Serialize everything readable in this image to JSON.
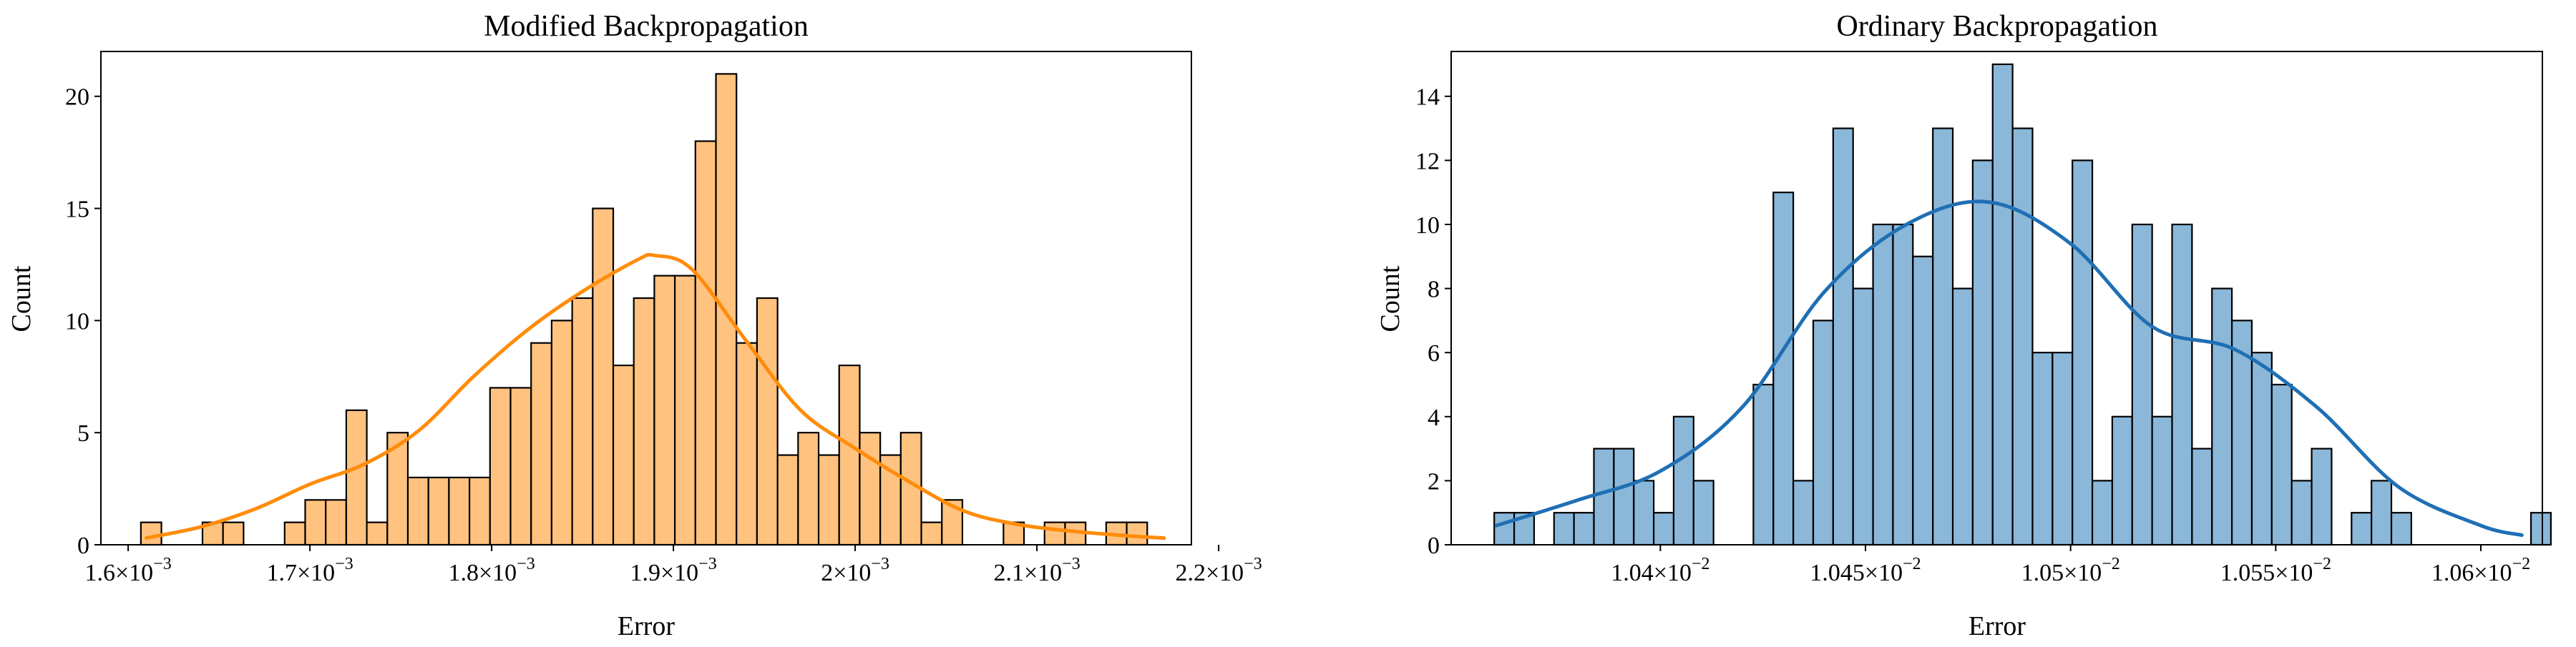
{
  "chart_data": [
    {
      "type": "bar",
      "title": "Modified Backpropagation",
      "xlabel": "Error",
      "ylabel": "Count",
      "xlim": [
        0.001585,
        0.002185
      ],
      "ylim": [
        0,
        22
      ],
      "xticks": [
        {
          "value": 0.0016,
          "mantissa": "1.6",
          "exp": "−3"
        },
        {
          "value": 0.0017,
          "mantissa": "1.7",
          "exp": "−3"
        },
        {
          "value": 0.0018,
          "mantissa": "1.8",
          "exp": "−3"
        },
        {
          "value": 0.0019,
          "mantissa": "1.9",
          "exp": "−3"
        },
        {
          "value": 0.002,
          "mantissa": "2",
          "exp": "−3"
        },
        {
          "value": 0.0021,
          "mantissa": "2.1",
          "exp": "−3"
        },
        {
          "value": 0.0022,
          "mantissa": "2.2",
          "exp": "−3"
        }
      ],
      "yticks": [
        0,
        5,
        10,
        15,
        20
      ],
      "bin_start": 0.001607,
      "bin_width": 1.13e-05,
      "counts": [
        1,
        0,
        0,
        1,
        1,
        0,
        0,
        1,
        2,
        2,
        6,
        1,
        5,
        3,
        3,
        3,
        3,
        7,
        7,
        9,
        10,
        11,
        15,
        8,
        11,
        12,
        12,
        18,
        21,
        9,
        11,
        4,
        5,
        4,
        8,
        5,
        4,
        5,
        1,
        2,
        0,
        0,
        1,
        0,
        1,
        1,
        0,
        1,
        1
      ],
      "kde": {
        "x": [
          0.00161,
          0.00164,
          0.00167,
          0.0017,
          0.00173,
          0.00176,
          0.00179,
          0.00182,
          0.00185,
          0.00188,
          0.00189,
          0.00191,
          0.00194,
          0.00197,
          0.002,
          0.00203,
          0.00206,
          0.00209,
          0.00212,
          0.00215,
          0.00217
        ],
        "y": [
          0.3,
          0.8,
          1.6,
          2.7,
          3.6,
          5.1,
          7.5,
          9.6,
          11.3,
          12.7,
          12.9,
          12.3,
          9.1,
          6.0,
          4.3,
          2.8,
          1.5,
          0.9,
          0.6,
          0.4,
          0.3
        ]
      },
      "colors": {
        "bar_fill": "#ffc27f",
        "bar_edge": "#000000",
        "kde_line": "#ff8c0a"
      }
    },
    {
      "type": "bar",
      "title": "Ordinary Backpropagation",
      "xlabel": "Error",
      "ylabel": "Count",
      "xlim": [
        0.010349,
        0.010615
      ],
      "ylim": [
        0,
        15.4
      ],
      "xticks": [
        {
          "value": 0.0104,
          "mantissa": "1.04",
          "exp": "−2"
        },
        {
          "value": 0.01045,
          "mantissa": "1.045",
          "exp": "−2"
        },
        {
          "value": 0.0105,
          "mantissa": "1.05",
          "exp": "−2"
        },
        {
          "value": 0.01055,
          "mantissa": "1.055",
          "exp": "−2"
        },
        {
          "value": 0.0106,
          "mantissa": "1.06",
          "exp": "−2"
        }
      ],
      "yticks": [
        0,
        2,
        4,
        6,
        8,
        10,
        12,
        14
      ],
      "bin_start": 0.0103595,
      "bin_width": 4.86e-06,
      "counts": [
        1,
        1,
        0,
        1,
        1,
        3,
        3,
        2,
        1,
        4,
        2,
        0,
        0,
        5,
        11,
        2,
        7,
        13,
        8,
        10,
        10,
        9,
        13,
        8,
        12,
        15,
        13,
        6,
        6,
        12,
        2,
        4,
        10,
        4,
        10,
        3,
        8,
        7,
        6,
        5,
        2,
        3,
        0,
        1,
        2,
        1,
        0,
        0,
        0,
        0,
        0,
        0,
        1
      ],
      "kde": {
        "x": [
          0.01036,
          0.01038,
          0.0104,
          0.01042,
          0.01044,
          0.01046,
          0.01048,
          0.0105,
          0.01052,
          0.01054,
          0.01056,
          0.01058,
          0.0106,
          0.01061
        ],
        "y": [
          0.6,
          1.4,
          2.3,
          4.3,
          7.9,
          10.0,
          10.7,
          9.4,
          6.8,
          6.1,
          4.3,
          1.8,
          0.6,
          0.3
        ]
      },
      "colors": {
        "bar_fill": "#8bb7d9",
        "bar_edge": "#000000",
        "kde_line": "#1f6fb4"
      }
    }
  ]
}
